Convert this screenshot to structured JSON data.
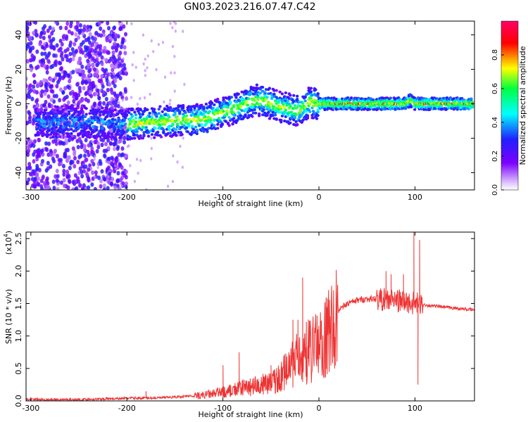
{
  "title": "GN03.2023.216.07.47.C42",
  "chart_data": [
    {
      "type": "heatmap",
      "xlabel": "Height of straight line (km)",
      "ylabel": "Frequency (Hz)",
      "xlim": [
        -305,
        162
      ],
      "ylim": [
        -50,
        48
      ],
      "xticks": [
        -300,
        -200,
        -100,
        0,
        100
      ],
      "yticks": [
        -40,
        -20,
        0,
        20,
        40
      ],
      "colorbar": {
        "label": "Normalized spectral amplitude",
        "range": [
          0,
          1
        ],
        "ticks": [
          "0.0",
          "0.2",
          "0.4",
          "0.6",
          "0.8"
        ],
        "colormap": "rainbow",
        "colors": [
          "#ffffff",
          "#7b00ff",
          "#2020ff",
          "#00ffff",
          "#00ff40",
          "#ffff00",
          "#ff0000",
          "#ff0066"
        ]
      },
      "ridge": {
        "x": [
          -290,
          -250,
          -200,
          -180,
          -150,
          -120,
          -100,
          -80,
          -65,
          -55,
          -40,
          -30,
          -20,
          -10,
          0,
          20,
          40,
          60,
          80,
          90,
          95,
          100,
          120,
          160
        ],
        "y": [
          -11,
          -10,
          -12,
          -11,
          -10,
          -9,
          -5,
          -1,
          2,
          1,
          -2,
          -3,
          -4,
          1,
          0,
          0,
          0,
          0,
          0,
          0,
          2,
          0,
          0,
          0
        ]
      }
    },
    {
      "type": "line",
      "xlabel": "Height of straight line (km)",
      "ylabel": "SNR (10 * v/v)",
      "ylabel_exponent": "(x10",
      "ylabel_exponent_power": "4",
      "ylabel_exponent_close": ")",
      "xlim": [
        -305,
        162
      ],
      "ylim": [
        0,
        2.6
      ],
      "xticks": [
        -300,
        -200,
        -100,
        0,
        100
      ],
      "yticks": [
        "0.0",
        "0.5",
        "1.0",
        "1.5",
        "2.0",
        "2.5"
      ],
      "line_color": "#ee3333",
      "envelope": {
        "x": [
          -305,
          -250,
          -200,
          -160,
          -130,
          -110,
          -90,
          -70,
          -50,
          -40,
          -30,
          -20,
          -10,
          0,
          10,
          20,
          30,
          40,
          50,
          60,
          70,
          80,
          90,
          100,
          110,
          120,
          140,
          162
        ],
        "y": [
          0.02,
          0.02,
          0.04,
          0.05,
          0.08,
          0.12,
          0.18,
          0.25,
          0.3,
          0.4,
          0.6,
          0.75,
          0.85,
          0.95,
          1.15,
          1.4,
          1.5,
          1.55,
          1.57,
          1.57,
          1.56,
          1.55,
          1.52,
          1.5,
          1.48,
          1.46,
          1.43,
          1.4
        ]
      },
      "spikes": [
        {
          "x": -180,
          "y": 0.15
        },
        {
          "x": -100,
          "y": 0.55
        },
        {
          "x": -83,
          "y": 0.75
        },
        {
          "x": -50,
          "y": 0.55
        },
        {
          "x": -27,
          "y": 1.25
        },
        {
          "x": -22,
          "y": 1.25
        },
        {
          "x": -17,
          "y": 1.9
        },
        {
          "x": 70,
          "y": 2.0
        },
        {
          "x": 75,
          "y": 1.95
        },
        {
          "x": 88,
          "y": 1.95
        },
        {
          "x": 99,
          "y": 2.6
        },
        {
          "x": 103,
          "y": 0.25
        },
        {
          "x": 105,
          "y": 2.48
        }
      ]
    }
  ]
}
